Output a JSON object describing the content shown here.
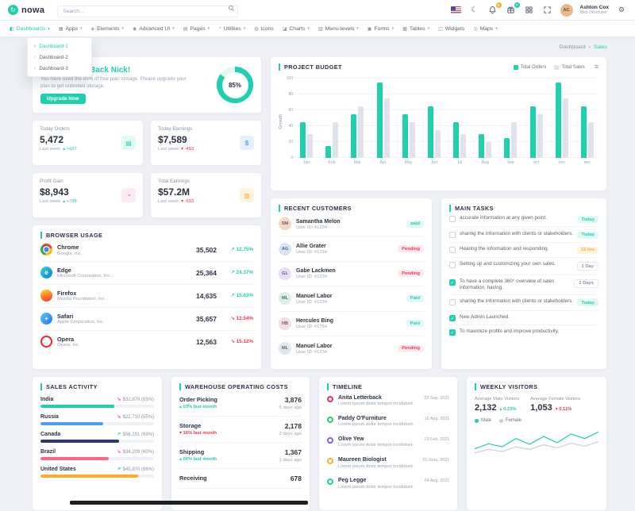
{
  "colors": {
    "accent": "#1fcfae",
    "red": "#f5334f",
    "blue": "#4a9ff9",
    "orange": "#ffab2e",
    "pink": "#fd6586",
    "navy": "#2b3a66",
    "purple": "#8b5cf6",
    "green": "#2ecc71",
    "graybar": "#dfe3ec"
  },
  "header": {
    "brand": "nowa",
    "search_placeholder": "Search...",
    "bell_badge": "5",
    "gift_badge": "7",
    "user": {
      "name": "Ashton Cox",
      "role": "Web Developer"
    }
  },
  "nav": {
    "items": [
      {
        "label": "Dashboards",
        "icon": "◧",
        "active": true
      },
      {
        "label": "Apps",
        "icon": "▦"
      },
      {
        "label": "Elements",
        "icon": "◈"
      },
      {
        "label": "Advanced UI",
        "icon": "◉"
      },
      {
        "label": "Pages",
        "icon": "▤"
      },
      {
        "label": "Utilities",
        "icon": "◔"
      },
      {
        "label": "Icons",
        "icon": "◍",
        "chevron": false
      },
      {
        "label": "Charts",
        "icon": "◪"
      },
      {
        "label": "Menu-levels",
        "icon": "▥"
      },
      {
        "label": "Forms",
        "icon": "▣"
      },
      {
        "label": "Tables",
        "icon": "▩"
      },
      {
        "label": "Widgets",
        "icon": "◫",
        "chevron": false
      },
      {
        "label": "Maps",
        "icon": "◎"
      }
    ],
    "dropdown": [
      "Dashboard-1",
      "Dashboard-2",
      "Dashboard-3"
    ]
  },
  "breadcrumb": {
    "section": "Dashboard",
    "separator": "›",
    "page": "Sales"
  },
  "welcome": {
    "title": "Hi, Welcome Back Nick!",
    "body": "You have used the 85% of free plan storage. Please upgrade your plan to get unlimited storage.",
    "button": "Upgrade Now"
  },
  "stats": [
    {
      "label": "Today Orders",
      "value": "5,472",
      "period": "Last week",
      "delta": "+427",
      "trend": "up",
      "theme": "teal",
      "icon": "▤",
      "icon_name": "calendar-icon"
    },
    {
      "label": "Today Earnings",
      "value": "$7,589",
      "period": "Last week",
      "delta": "-453",
      "trend": "down",
      "theme": "blue",
      "icon": "$",
      "icon_name": "dollar-icon"
    },
    {
      "label": "Profit Gain",
      "value": "$8,943",
      "period": "Last week",
      "delta": "+788",
      "trend": "up",
      "theme": "pink",
      "icon": "◔",
      "icon_name": "chart-icon"
    },
    {
      "label": "Total Earnings",
      "value": "$57.2M",
      "period": "Last week",
      "delta": "-693",
      "trend": "down",
      "theme": "yellow",
      "icon": "▥",
      "icon_name": "wallet-icon"
    }
  ],
  "chart_data": [
    {
      "id": "project_budget",
      "type": "bar",
      "title": "PROJECT BUDGET",
      "ylabel": "Growth",
      "ylim": [
        0,
        100
      ],
      "yticks": [
        0,
        20,
        40,
        60,
        80,
        100
      ],
      "grid": true,
      "legend_position": "top",
      "categories": [
        "Jan",
        "Feb",
        "Mar",
        "Apr",
        "May",
        "Jun",
        "Jul",
        "Aug",
        "sep",
        "oct",
        "nov",
        "dec"
      ],
      "series": [
        {
          "name": "Total Orders",
          "color": "#1fcfae",
          "values": [
            45,
            15,
            55,
            95,
            55,
            65,
            45,
            30,
            25,
            65,
            95,
            65
          ]
        },
        {
          "name": "Total Sales",
          "color": "#dfe3ec",
          "values": [
            30,
            45,
            65,
            75,
            45,
            35,
            30,
            20,
            45,
            55,
            75,
            45
          ]
        }
      ]
    },
    {
      "id": "storage_donut",
      "type": "donut",
      "value": 85,
      "label": "85%"
    },
    {
      "id": "weekly_visitors",
      "type": "line",
      "series": [
        {
          "name": "Male",
          "color": "#1fcfae",
          "values": [
            2.2,
            3.2,
            2.6,
            4.2,
            3.1,
            4.6,
            3.4,
            5.1,
            4.2,
            5.5
          ]
        },
        {
          "name": "Female",
          "color": "#c9cfdb",
          "values": [
            1.4,
            2.1,
            1.7,
            2.6,
            2.1,
            3.0,
            2.4,
            3.3,
            2.7,
            3.6
          ]
        }
      ]
    }
  ],
  "browser_usage": {
    "title": "BROWSER USAGE",
    "rows": [
      {
        "name": "Chrome",
        "company": "Google, Inc.",
        "value": "35,502",
        "delta": "12.75%",
        "trend": "up",
        "logo": "chrome",
        "letter": ""
      },
      {
        "name": "Edge",
        "company": "Microsoft Corporation, Inc.",
        "value": "25,364",
        "delta": "24.37%",
        "trend": "up",
        "logo": "edge",
        "letter": "e"
      },
      {
        "name": "Firefox",
        "company": "Mozilla Foundation, Inc.",
        "value": "14,635",
        "delta": "15.63%",
        "trend": "up",
        "logo": "firefox",
        "letter": ""
      },
      {
        "name": "Safari",
        "company": "Apple Corporation, Inc.",
        "value": "35,657",
        "delta": "12.54%",
        "trend": "down",
        "logo": "safari",
        "letter": "✦"
      },
      {
        "name": "Opera",
        "company": "Opera, Inc.",
        "value": "12,563",
        "delta": "15.12%",
        "trend": "down",
        "logo": "opera",
        "letter": ""
      }
    ]
  },
  "recent_customers": {
    "title": "RECENT CUSTOMERS",
    "rows": [
      {
        "name": "Samantha Melon",
        "meta": "User ID: #1234",
        "badge": "paid",
        "badge_type": "teal"
      },
      {
        "name": "Allie Grater",
        "meta": "User ID: #1234",
        "badge": "Pending",
        "badge_type": "red"
      },
      {
        "name": "Gabe Lackmen",
        "meta": "User ID: #1234",
        "badge": "Pending",
        "badge_type": "red"
      },
      {
        "name": "Manuel Labor",
        "meta": "User ID: #1234",
        "badge": "Paid",
        "badge_type": "teal"
      },
      {
        "name": "Hercules Bing",
        "meta": "User ID: #1754",
        "badge": "Paid",
        "badge_type": "teal"
      },
      {
        "name": "Manuel Labor",
        "meta": "User ID: #1234",
        "badge": "Pending",
        "badge_type": "red"
      }
    ]
  },
  "main_tasks": {
    "title": "MAIN TASKS",
    "items": [
      {
        "text": "accurate information at any given point.",
        "badge": "Today",
        "badge_type": "teal",
        "checked": false
      },
      {
        "text": "sharing the information with clients or stakeholders.",
        "badge": "Today",
        "badge_type": "teal",
        "checked": false
      },
      {
        "text": "Hearing the information and responding.",
        "badge": "22 hrs",
        "badge_type": "yellow",
        "checked": false
      },
      {
        "text": "Setting up and customizing your own sales.",
        "badge": "1 Day",
        "badge_type": "light",
        "checked": false
      },
      {
        "text": "To have a complete 360° overview of sales information, having.",
        "badge": "2 Days",
        "badge_type": "light",
        "checked": true
      },
      {
        "text": "sharing the information with clients or stakeholders.",
        "badge": "Today",
        "badge_type": "teal",
        "checked": false
      },
      {
        "text": "New Admin Launched.",
        "badge": "",
        "badge_type": "",
        "checked": true
      },
      {
        "text": "To maximize profits and improve productivity.",
        "badge": "",
        "badge_type": "",
        "checked": true
      }
    ]
  },
  "sales_activity": {
    "title": "SALES ACTIVITY",
    "rows": [
      {
        "country": "India",
        "value": "$32,879 (65%)",
        "trend": "down",
        "bar_color": "accent",
        "percent": 65
      },
      {
        "country": "Russia",
        "value": "$22,710 (55%)",
        "trend": "down",
        "bar_color": "blue",
        "percent": 55
      },
      {
        "country": "Canada",
        "value": "$56,291 (69%)",
        "trend": "up",
        "bar_color": "navy",
        "percent": 69
      },
      {
        "country": "Brazil",
        "value": "$34,209 (60%)",
        "trend": "down",
        "bar_color": "pink",
        "percent": 60
      },
      {
        "country": "United States",
        "value": "$45,870 (86%)",
        "trend": "up",
        "bar_color": "orange",
        "percent": 86
      }
    ]
  },
  "warehouse": {
    "title": "WAREHOUSE OPERATING COSTS",
    "rows": [
      {
        "label": "Order Picking",
        "sub": "03% last month",
        "trend": "up",
        "value": "3,876",
        "ago": "5 days ago"
      },
      {
        "label": "Storage",
        "sub": "16% last month",
        "trend": "down",
        "value": "2,178",
        "ago": "2 days ago"
      },
      {
        "label": "Shipping",
        "sub": "06% last month",
        "trend": "up",
        "value": "1,367",
        "ago": "1 days ago"
      },
      {
        "label": "Receiving",
        "sub": "",
        "trend": "up",
        "value": "678",
        "ago": ""
      }
    ]
  },
  "timeline": {
    "title": "TIMELINE",
    "rows": [
      {
        "name": "Anita Letterback",
        "date": "23 Sep, 2021",
        "text": "Lorem ipsum dolor tempor incididunt.",
        "dot": "red"
      },
      {
        "name": "Paddy O'Furniture",
        "date": "16 Aug, 2021",
        "text": "Lorem ipsum dolor tempor incididunt.",
        "dot": "green"
      },
      {
        "name": "Olive Yew",
        "date": "23 Feb, 2021",
        "text": "Lorem ipsum dolor tempor incididunt.",
        "dot": "purple"
      },
      {
        "name": "Maureen Biologist",
        "date": "21 June, 2021",
        "text": "Lorem ipsum dolor tempor incididunt.",
        "dot": "orange"
      },
      {
        "name": "Peg Legge",
        "date": "04 Aug, 2021",
        "text": "Lorem ipsum dolor tempor incididunt.",
        "dot": "accent"
      }
    ]
  },
  "weekly_visitors": {
    "title": "WEEKLY VISITORS",
    "male_label": "Average Male Visitors",
    "male_value": "2,132",
    "male_delta": "0.23%",
    "female_label": "Average Female Visitors",
    "female_value": "1,053",
    "female_delta": "0.11%",
    "legend": [
      "Male",
      "Female"
    ]
  }
}
